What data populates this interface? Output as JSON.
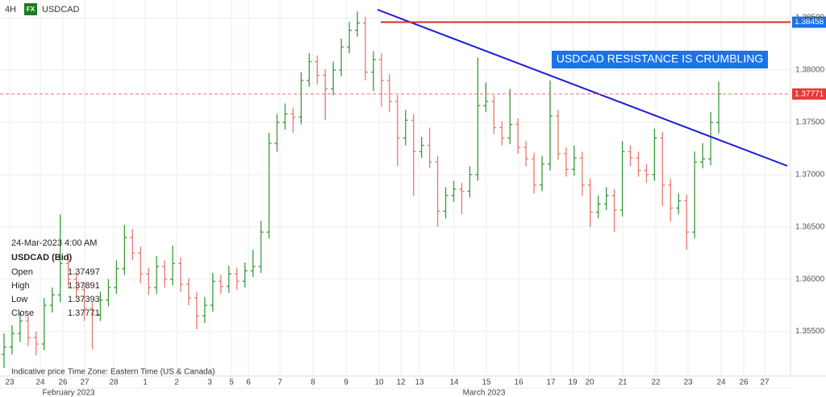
{
  "header": {
    "timeframe": "4H",
    "badge": "FX",
    "symbol": "USDCAD"
  },
  "chart_data": {
    "type": "ohlc",
    "title": "USDCAD RESISTANCE IS CRUMBLING",
    "up_color": "#3c9a3c",
    "down_color": "#e8796f",
    "grid": true,
    "ylim": [
      1.3505,
      1.3867
    ],
    "yticks": [
      {
        "value": 1.355,
        "label": "1.35500"
      },
      {
        "value": 1.36,
        "label": "1.36000"
      },
      {
        "value": 1.365,
        "label": "1.36500"
      },
      {
        "value": 1.37,
        "label": "1.37000"
      },
      {
        "value": 1.375,
        "label": "1.37500"
      },
      {
        "value": 1.38,
        "label": "1.38000"
      },
      {
        "value": 1.385,
        "label": "1.38500"
      }
    ],
    "xticks": [
      "23",
      "24",
      "26",
      "27",
      "28",
      "1",
      "2",
      "3",
      "5",
      "6",
      "7",
      "8",
      "9",
      "10",
      "12",
      "13",
      "14",
      "15",
      "16",
      "17",
      "19",
      "20",
      "21",
      "22",
      "23",
      "24",
      "26",
      "27"
    ],
    "months": [
      "February 2023",
      "March 2023"
    ],
    "resistance": {
      "value": 1.38458,
      "color": "#d32f2f"
    },
    "trend_color": "#1a1adb",
    "ohlc": [
      [
        1.3528,
        1.3548,
        1.3515,
        1.3535
      ],
      [
        1.3535,
        1.3556,
        1.3528,
        1.3548
      ],
      [
        1.3548,
        1.3568,
        1.354,
        1.356
      ],
      [
        1.356,
        1.3566,
        1.3536,
        1.3544
      ],
      [
        1.3544,
        1.355,
        1.3527,
        1.3538
      ],
      [
        1.3538,
        1.3582,
        1.3532,
        1.3575
      ],
      [
        1.3575,
        1.3592,
        1.3568,
        1.3585
      ],
      [
        1.3585,
        1.3662,
        1.3578,
        1.3615
      ],
      [
        1.3615,
        1.3622,
        1.3592,
        1.36
      ],
      [
        1.36,
        1.3606,
        1.3582,
        1.359
      ],
      [
        1.359,
        1.3596,
        1.356,
        1.3572
      ],
      [
        1.3572,
        1.3578,
        1.3533,
        1.3566
      ],
      [
        1.3566,
        1.3588,
        1.356,
        1.358
      ],
      [
        1.358,
        1.36,
        1.3574,
        1.3592
      ],
      [
        1.3592,
        1.3618,
        1.3586,
        1.361
      ],
      [
        1.361,
        1.3652,
        1.3604,
        1.364
      ],
      [
        1.364,
        1.3648,
        1.3618,
        1.3625
      ],
      [
        1.3625,
        1.3631,
        1.3596,
        1.3605
      ],
      [
        1.3605,
        1.3611,
        1.3585,
        1.3592
      ],
      [
        1.3592,
        1.3622,
        1.3586,
        1.3612
      ],
      [
        1.3612,
        1.3618,
        1.3592,
        1.36
      ],
      [
        1.36,
        1.3632,
        1.3594,
        1.3615
      ],
      [
        1.3615,
        1.3621,
        1.3588,
        1.3595
      ],
      [
        1.3595,
        1.3601,
        1.3575,
        1.3582
      ],
      [
        1.3582,
        1.3588,
        1.3552,
        1.3565
      ],
      [
        1.3565,
        1.3583,
        1.3558,
        1.3575
      ],
      [
        1.3575,
        1.3606,
        1.3569,
        1.3598
      ],
      [
        1.3598,
        1.3604,
        1.3586,
        1.3593
      ],
      [
        1.3593,
        1.3613,
        1.3587,
        1.3605
      ],
      [
        1.3605,
        1.3611,
        1.359,
        1.3598
      ],
      [
        1.3598,
        1.3616,
        1.3592,
        1.3608
      ],
      [
        1.3608,
        1.3628,
        1.3602,
        1.3612
      ],
      [
        1.3612,
        1.3656,
        1.3606,
        1.3645
      ],
      [
        1.3645,
        1.374,
        1.3639,
        1.373
      ],
      [
        1.373,
        1.3758,
        1.3722,
        1.375
      ],
      [
        1.375,
        1.3768,
        1.3743,
        1.3758
      ],
      [
        1.3758,
        1.3764,
        1.374,
        1.3755
      ],
      [
        1.3755,
        1.3798,
        1.3748,
        1.379
      ],
      [
        1.379,
        1.3816,
        1.3784,
        1.3808
      ],
      [
        1.3808,
        1.3814,
        1.3786,
        1.3795
      ],
      [
        1.3795,
        1.3801,
        1.3752,
        1.3782
      ],
      [
        1.3782,
        1.3808,
        1.3776,
        1.38
      ],
      [
        1.38,
        1.383,
        1.3794,
        1.3822
      ],
      [
        1.3822,
        1.3846,
        1.3816,
        1.3838
      ],
      [
        1.3838,
        1.3856,
        1.3832,
        1.3845
      ],
      [
        1.3845,
        1.3851,
        1.379,
        1.3798
      ],
      [
        1.3798,
        1.3818,
        1.378,
        1.381
      ],
      [
        1.381,
        1.3816,
        1.3765,
        1.379
      ],
      [
        1.379,
        1.3796,
        1.376,
        1.377
      ],
      [
        1.377,
        1.3776,
        1.3708,
        1.3735
      ],
      [
        1.3735,
        1.3762,
        1.3728,
        1.3752
      ],
      [
        1.3752,
        1.3758,
        1.368,
        1.3722
      ],
      [
        1.3722,
        1.3736,
        1.3716,
        1.3728
      ],
      [
        1.3728,
        1.3745,
        1.3706,
        1.3712
      ],
      [
        1.3712,
        1.3718,
        1.365,
        1.3665
      ],
      [
        1.3665,
        1.3688,
        1.3658,
        1.368
      ],
      [
        1.368,
        1.3694,
        1.3674,
        1.3686
      ],
      [
        1.3686,
        1.3692,
        1.3662,
        1.3684
      ],
      [
        1.3684,
        1.3708,
        1.3678,
        1.37
      ],
      [
        1.37,
        1.3812,
        1.3694,
        1.3766
      ],
      [
        1.3766,
        1.3788,
        1.376,
        1.377
      ],
      [
        1.377,
        1.3776,
        1.3739,
        1.3745
      ],
      [
        1.3745,
        1.3751,
        1.3728,
        1.3735
      ],
      [
        1.3735,
        1.3782,
        1.3729,
        1.3748
      ],
      [
        1.3748,
        1.3754,
        1.372,
        1.3726
      ],
      [
        1.3726,
        1.3732,
        1.3708,
        1.3715
      ],
      [
        1.3715,
        1.3721,
        1.3682,
        1.369
      ],
      [
        1.369,
        1.3718,
        1.3684,
        1.371
      ],
      [
        1.371,
        1.379,
        1.3704,
        1.3756
      ],
      [
        1.3756,
        1.3762,
        1.3714,
        1.372
      ],
      [
        1.372,
        1.3726,
        1.3698,
        1.3705
      ],
      [
        1.3705,
        1.3728,
        1.3699,
        1.3716
      ],
      [
        1.3716,
        1.3722,
        1.368,
        1.369
      ],
      [
        1.369,
        1.3696,
        1.365,
        1.3664
      ],
      [
        1.3664,
        1.368,
        1.3658,
        1.3672
      ],
      [
        1.3672,
        1.3688,
        1.3666,
        1.368
      ],
      [
        1.368,
        1.3686,
        1.3645,
        1.3666
      ],
      [
        1.3666,
        1.3732,
        1.366,
        1.3722
      ],
      [
        1.3722,
        1.3728,
        1.3708,
        1.3716
      ],
      [
        1.3716,
        1.3722,
        1.3698,
        1.3704
      ],
      [
        1.3704,
        1.371,
        1.3692,
        1.37
      ],
      [
        1.37,
        1.3744,
        1.3694,
        1.3735
      ],
      [
        1.3735,
        1.3741,
        1.367,
        1.369
      ],
      [
        1.369,
        1.3696,
        1.3655,
        1.3668
      ],
      [
        1.3668,
        1.3682,
        1.3662,
        1.3675
      ],
      [
        1.3675,
        1.3681,
        1.3628,
        1.3645
      ],
      [
        1.3645,
        1.3722,
        1.3639,
        1.3712
      ],
      [
        1.3712,
        1.373,
        1.3706,
        1.3715
      ],
      [
        1.3715,
        1.376,
        1.3709,
        1.375
      ],
      [
        1.37497,
        1.37891,
        1.37393,
        1.37771
      ]
    ]
  },
  "tooltip": {
    "time": "24-Mar-2023 4:00 AM",
    "instrument": "USDCAD (Bid)",
    "labels": [
      "Open",
      "High",
      "Low",
      "Close"
    ]
  },
  "footer": {
    "note": "Indicative price",
    "timezone": "Time Zone: Eastern Time (US & Canada)"
  }
}
